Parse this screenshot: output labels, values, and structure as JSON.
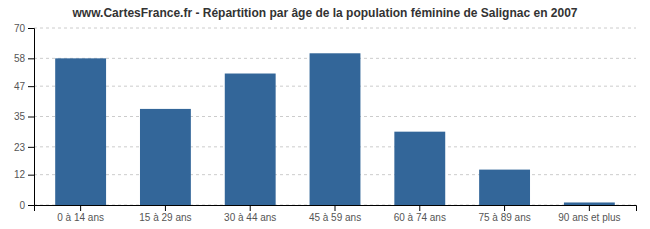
{
  "chart_data": {
    "type": "bar",
    "title": "www.CartesFrance.fr - Répartition par âge de la population féminine de Salignac en 2007",
    "categories": [
      "0 à 14 ans",
      "15 à 29 ans",
      "30 à 44 ans",
      "45 à 59 ans",
      "60 à 74 ans",
      "75 à 89 ans",
      "90 ans et plus"
    ],
    "values": [
      58,
      38,
      52,
      60,
      29,
      14,
      1
    ],
    "color": "#336699",
    "ylim": [
      0,
      70
    ],
    "yticks": [
      0,
      12,
      23,
      35,
      47,
      58,
      70
    ],
    "grid": true
  }
}
